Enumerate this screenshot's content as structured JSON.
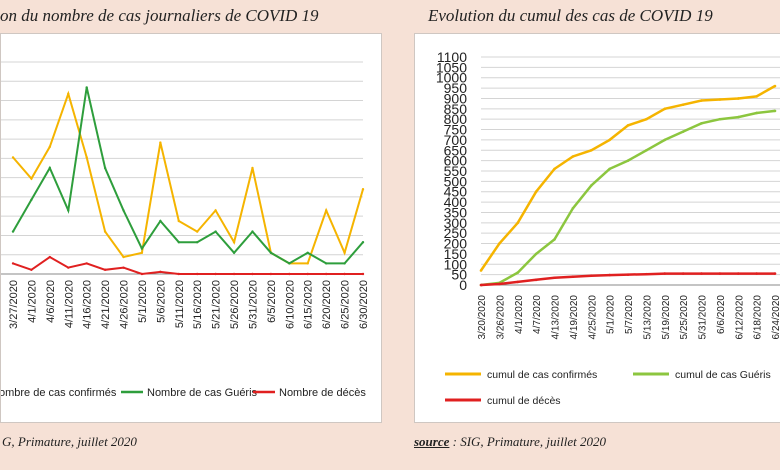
{
  "left": {
    "title": "on du nombre de cas journaliers de COVID 19",
    "source": "G, Primature, juillet 2020"
  },
  "right": {
    "title": "Evolution du cumul des cas de COVID 19",
    "source_label": "source",
    "source_text": " : SIG, Primature, juillet 2020"
  },
  "colors": {
    "confirmed": "#f5b400",
    "recovered": "#2e9e3c",
    "recovered_cum": "#8cc63f",
    "deaths": "#e02020"
  },
  "chart_data": [
    {
      "type": "line",
      "title": "",
      "xlabel": "",
      "ylabel": "",
      "x": [
        "3/27/2020",
        "4/1/2020",
        "4/6/2020",
        "4/11/2020",
        "4/16/2020",
        "4/21/2020",
        "4/26/2020",
        "5/1/2020",
        "5/6/2020",
        "5/11/2020",
        "5/16/2020",
        "5/21/2020",
        "5/26/2020",
        "5/31/2020",
        "6/5/2020",
        "6/10/2020",
        "6/15/2020",
        "6/20/2020",
        "6/25/2020",
        "6/30/2020"
      ],
      "series": [
        {
          "name": "ombre de cas confirmés",
          "values": [
            55,
            45,
            60,
            85,
            55,
            20,
            8,
            10,
            62,
            25,
            20,
            30,
            15,
            50,
            10,
            5,
            5,
            30,
            10,
            40
          ]
        },
        {
          "name": "Nombre de cas Guéris",
          "values": [
            20,
            35,
            50,
            30,
            88,
            50,
            30,
            12,
            25,
            15,
            15,
            20,
            10,
            20,
            10,
            5,
            10,
            5,
            5,
            15
          ]
        },
        {
          "name": "Nombre de décès",
          "values": [
            5,
            2,
            8,
            3,
            5,
            2,
            3,
            0,
            1,
            0,
            0,
            0,
            0,
            0,
            0,
            0,
            0,
            0,
            0,
            0
          ]
        }
      ]
    },
    {
      "type": "line",
      "title": "Evolution du cumul des cas de COVID 19",
      "xlabel": "",
      "ylabel": "",
      "ylim": [
        0,
        1100
      ],
      "yticks": [
        "0",
        "50",
        "100",
        "150",
        "200",
        "250",
        "300",
        "350",
        "400",
        "450",
        "500",
        "550",
        "600",
        "650",
        "700",
        "750",
        "800",
        "850",
        "900",
        "950",
        "1000",
        "1050",
        "1100"
      ],
      "x": [
        "3/20/2020",
        "3/26/2020",
        "4/1/2020",
        "4/7/2020",
        "4/13/2020",
        "4/19/2020",
        "4/25/2020",
        "5/1/2020",
        "5/7/2020",
        "5/13/2020",
        "5/19/2020",
        "5/25/2020",
        "5/31/2020",
        "6/6/2020",
        "6/12/2020",
        "6/18/2020",
        "6/24/2020"
      ],
      "series": [
        {
          "name": "cumul de cas confirmés",
          "values": [
            70,
            200,
            300,
            450,
            560,
            620,
            650,
            700,
            770,
            800,
            850,
            870,
            890,
            895,
            900,
            910,
            960
          ]
        },
        {
          "name": "cumul de cas Guéris",
          "values": [
            0,
            10,
            60,
            150,
            220,
            370,
            480,
            560,
            600,
            650,
            700,
            740,
            780,
            800,
            810,
            830,
            840
          ]
        },
        {
          "name": "cumul de décès",
          "values": [
            0,
            5,
            15,
            25,
            35,
            40,
            45,
            48,
            50,
            52,
            55,
            55,
            55,
            55,
            55,
            55,
            55
          ]
        }
      ]
    }
  ]
}
